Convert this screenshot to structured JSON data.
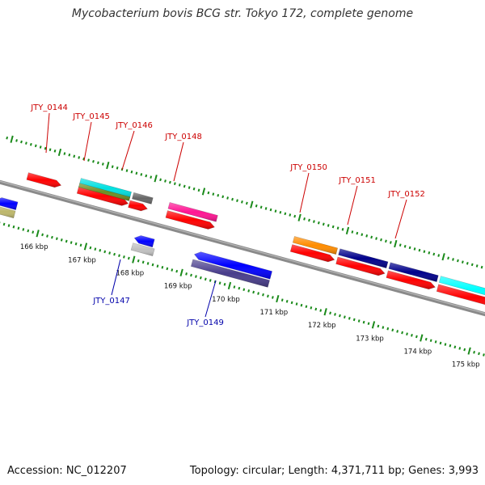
{
  "title": "Mycobacterium bovis BCG str. Tokyo 172, complete genome",
  "footer": {
    "accession": "Accession: NC_012207",
    "summary": "Topology: circular; Length: 4,371,711 bp; Genes: 3,993"
  },
  "axis": {
    "unit": "kbp",
    "ticks": [
      {
        "kbp": 166,
        "label": "166 kbp"
      },
      {
        "kbp": 167,
        "label": "167 kbp"
      },
      {
        "kbp": 168,
        "label": "168 kbp"
      },
      {
        "kbp": 169,
        "label": "169 kbp"
      },
      {
        "kbp": 170,
        "label": "170 kbp"
      },
      {
        "kbp": 171,
        "label": "171 kbp"
      },
      {
        "kbp": 172,
        "label": "172 kbp"
      },
      {
        "kbp": 173,
        "label": "173 kbp"
      },
      {
        "kbp": 174,
        "label": "174 kbp"
      },
      {
        "kbp": 175,
        "label": "175 kbp"
      }
    ]
  },
  "labels": [
    {
      "text": "JTY_0144",
      "color": "#cc0000"
    },
    {
      "text": "JTY_0145",
      "color": "#cc0000"
    },
    {
      "text": "JTY_0146",
      "color": "#cc0000"
    },
    {
      "text": "JTY_0147",
      "color": "#0000aa"
    },
    {
      "text": "JTY_0148",
      "color": "#cc0000"
    },
    {
      "text": "JTY_0149",
      "color": "#0000aa"
    },
    {
      "text": "JTY_0150",
      "color": "#cc0000"
    },
    {
      "text": "JTY_0151",
      "color": "#cc0000"
    },
    {
      "text": "JTY_0152",
      "color": "#cc0000"
    }
  ],
  "features": [
    {
      "lane": "forward-cds",
      "start": 165.5,
      "end": 166.2,
      "color": "#ff0000"
    },
    {
      "lane": "forward-cds",
      "start": 166.55,
      "end": 167.6,
      "color": "#ff0000"
    },
    {
      "lane": "forward-cds",
      "start": 167.62,
      "end": 168.0,
      "color": "#ff0000"
    },
    {
      "lane": "forward-cds",
      "start": 168.4,
      "end": 169.4,
      "color": "#ff0000"
    },
    {
      "lane": "forward-cds",
      "start": 171.0,
      "end": 171.9,
      "color": "#ff0000"
    },
    {
      "lane": "forward-cds",
      "start": 171.95,
      "end": 172.95,
      "color": "#ff0000"
    },
    {
      "lane": "forward-cds",
      "start": 173.0,
      "end": 174.0,
      "color": "#ff0000"
    },
    {
      "lane": "forward-cds",
      "start": 174.05,
      "end": 175.6,
      "color": "#ff0000"
    },
    {
      "lane": "forward-cog",
      "start": 166.55,
      "end": 167.6,
      "color": "#00e0e0"
    },
    {
      "lane": "forward-cog2",
      "start": 166.55,
      "end": 167.6,
      "color": "#6b8e23"
    },
    {
      "lane": "forward-cog",
      "start": 167.65,
      "end": 168.05,
      "color": "#666666"
    },
    {
      "lane": "forward-cog",
      "start": 168.4,
      "end": 169.4,
      "color": "#ff1493"
    },
    {
      "lane": "forward-cog",
      "start": 171.0,
      "end": 171.9,
      "color": "#ff8c00"
    },
    {
      "lane": "forward-cog",
      "start": 171.95,
      "end": 172.95,
      "color": "#00008b"
    },
    {
      "lane": "forward-cog",
      "start": 173.0,
      "end": 174.0,
      "color": "#00008b"
    },
    {
      "lane": "forward-cog",
      "start": 174.05,
      "end": 175.6,
      "color": "#00ffff"
    },
    {
      "lane": "reverse-cds",
      "start": 165.0,
      "end": 165.45,
      "color": "#0000ff"
    },
    {
      "lane": "reverse-cds",
      "start": 167.9,
      "end": 168.3,
      "color": "#0000ff"
    },
    {
      "lane": "reverse-cds",
      "start": 169.15,
      "end": 170.75,
      "color": "#0000ff"
    },
    {
      "lane": "reverse-cog",
      "start": 165.0,
      "end": 165.45,
      "color": "#bdb76b"
    },
    {
      "lane": "reverse-cog",
      "start": 167.9,
      "end": 168.35,
      "color": "#c0c0c0"
    },
    {
      "lane": "reverse-cog",
      "start": 169.15,
      "end": 170.75,
      "color": "#483d8b"
    }
  ]
}
